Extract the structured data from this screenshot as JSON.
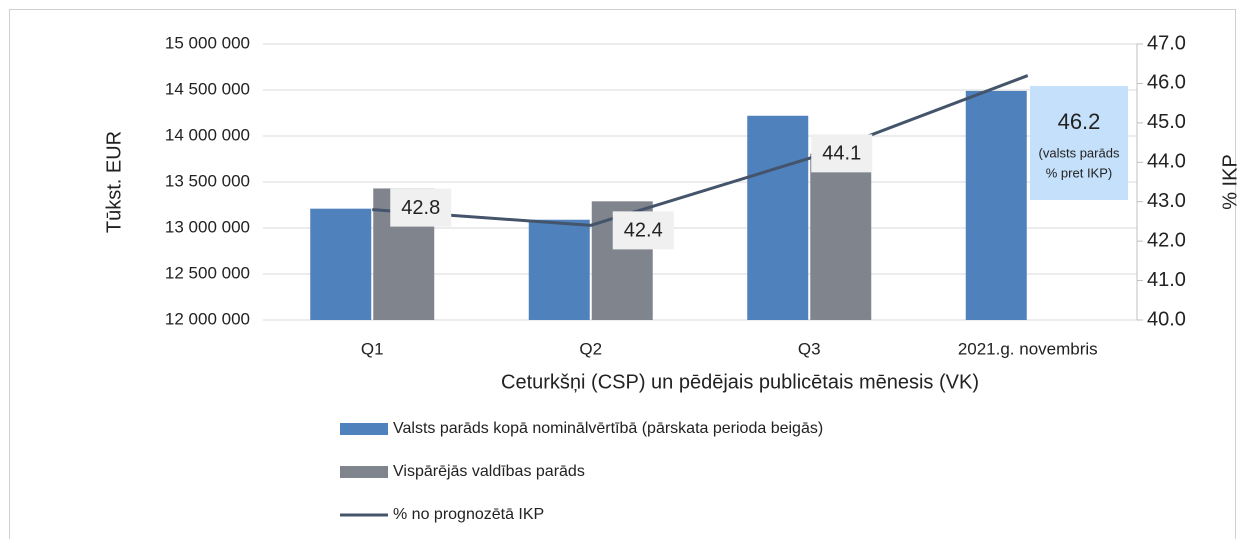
{
  "chart_data": {
    "type": "bar",
    "categories": [
      "Q1",
      "Q2",
      "Q3",
      "2021.g. novembris"
    ],
    "series": [
      {
        "name": "Valsts parāds kopā nominālvērtībā (pārskata perioda beigās)",
        "color": "#4f81bd",
        "type": "bar",
        "values": [
          13210000,
          13090000,
          14220000,
          14490000
        ]
      },
      {
        "name": "Vispārējās valdības parāds",
        "color": "#80858d",
        "type": "bar",
        "values": [
          13430000,
          13290000,
          13810000,
          null
        ]
      },
      {
        "name": "% no prognozētā IKP",
        "color": "#44546a",
        "type": "line",
        "axis": "y2",
        "values": [
          42.8,
          42.4,
          44.1,
          46.2
        ]
      }
    ],
    "ylabel": "Tūkst. EUR",
    "y2label": "% IKP",
    "xlabel": "Ceturkšņi (CSP) un pēdējais publicētais mēnesis (VK)",
    "annotation": [
      "(valsts parāds",
      "% pret IKP)"
    ],
    "ylim": [
      12000000,
      15000000
    ],
    "yticks": [
      {
        "value": 12000000,
        "label": "12 000 000"
      },
      {
        "value": 12500000,
        "label": "12 500 000"
      },
      {
        "value": 13000000,
        "label": "13 000 000"
      },
      {
        "value": 13500000,
        "label": "13 500 000"
      },
      {
        "value": 14000000,
        "label": "14 000 000"
      },
      {
        "value": 14500000,
        "label": "14 500 000"
      },
      {
        "value": 15000000,
        "label": "15 000 000"
      }
    ],
    "y2lim": [
      40,
      47
    ],
    "y2ticks": [
      {
        "value": 40,
        "label": "40.0"
      },
      {
        "value": 41,
        "label": "41.0"
      },
      {
        "value": 42,
        "label": "42.0"
      },
      {
        "value": 43,
        "label": "43.0"
      },
      {
        "value": 44,
        "label": "44.0"
      },
      {
        "value": 45,
        "label": "45.0"
      },
      {
        "value": 46,
        "label": "46.0"
      },
      {
        "value": 47,
        "label": "47.0"
      }
    ],
    "grid": true,
    "legend": "bottom"
  }
}
